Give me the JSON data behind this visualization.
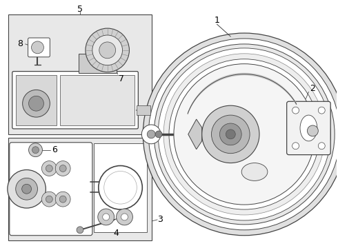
{
  "background_color": "#ffffff",
  "light_gray": "#e8e8e8",
  "line_color": "#444444",
  "fig_w": 4.9,
  "fig_h": 3.6,
  "dpi": 100
}
